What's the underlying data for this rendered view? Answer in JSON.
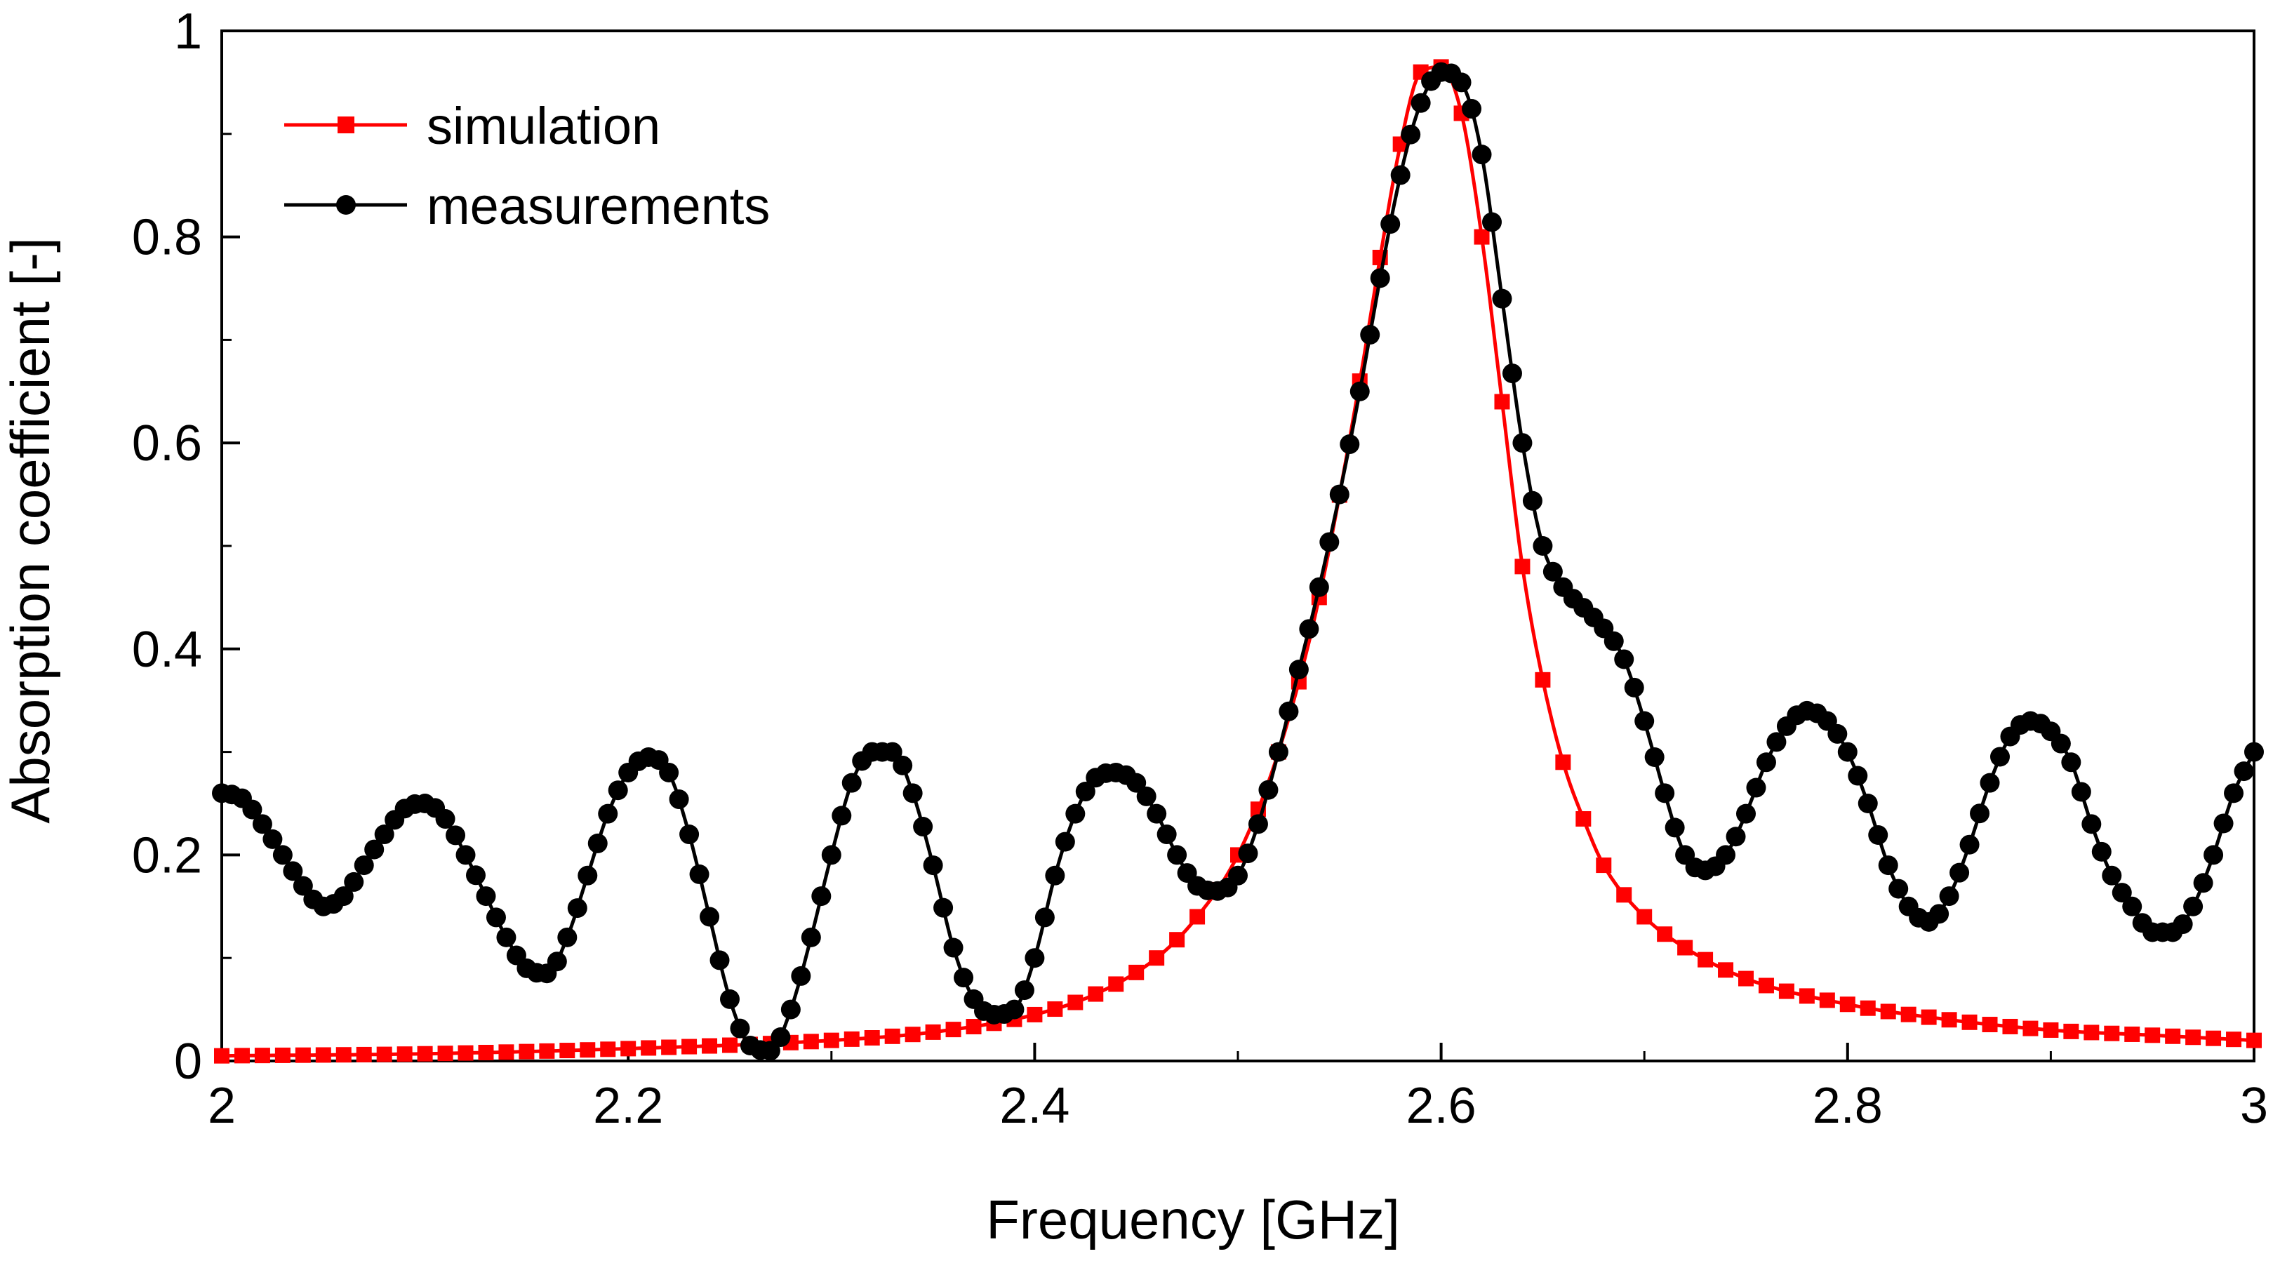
{
  "chart_data": {
    "type": "line",
    "title": "",
    "xlabel": "Frequency [GHz]",
    "ylabel": "Absorption coefficient [-]",
    "xlim": [
      2,
      3
    ],
    "ylim": [
      0,
      1
    ],
    "xticks": [
      2,
      2.2,
      2.4,
      2.6,
      2.8,
      3
    ],
    "xtick_labels": [
      "2",
      "2.2",
      "2.4",
      "2.6",
      "2.8",
      "3"
    ],
    "yticks": [
      0,
      0.2,
      0.4,
      0.6,
      0.8,
      1
    ],
    "ytick_labels": [
      "0",
      "0.2",
      "0.4",
      "0.6",
      "0.8",
      "1"
    ],
    "legend_position": "top-left",
    "grid": false,
    "series": [
      {
        "name": "simulation",
        "color": "#ff0000",
        "marker": "square",
        "x": [
          2.0,
          2.1,
          2.2,
          2.3,
          2.35,
          2.4,
          2.43,
          2.46,
          2.48,
          2.5,
          2.52,
          2.54,
          2.56,
          2.57,
          2.58,
          2.59,
          2.6,
          2.61,
          2.62,
          2.63,
          2.64,
          2.65,
          2.66,
          2.67,
          2.68,
          2.7,
          2.72,
          2.75,
          2.8,
          2.85,
          2.9,
          2.95,
          3.0
        ],
        "y": [
          0.005,
          0.007,
          0.012,
          0.02,
          0.028,
          0.045,
          0.065,
          0.1,
          0.14,
          0.2,
          0.3,
          0.45,
          0.66,
          0.78,
          0.89,
          0.96,
          0.965,
          0.92,
          0.8,
          0.64,
          0.48,
          0.37,
          0.29,
          0.235,
          0.19,
          0.14,
          0.11,
          0.08,
          0.055,
          0.04,
          0.03,
          0.025,
          0.02
        ]
      },
      {
        "name": "measurements",
        "color": "#000000",
        "marker": "circle",
        "x": [
          2.0,
          2.01,
          2.02,
          2.03,
          2.04,
          2.05,
          2.06,
          2.07,
          2.08,
          2.09,
          2.1,
          2.11,
          2.12,
          2.13,
          2.14,
          2.15,
          2.16,
          2.17,
          2.18,
          2.19,
          2.2,
          2.21,
          2.22,
          2.23,
          2.24,
          2.25,
          2.26,
          2.27,
          2.28,
          2.29,
          2.3,
          2.31,
          2.32,
          2.33,
          2.34,
          2.35,
          2.36,
          2.37,
          2.38,
          2.39,
          2.4,
          2.41,
          2.42,
          2.43,
          2.44,
          2.45,
          2.46,
          2.47,
          2.48,
          2.49,
          2.5,
          2.51,
          2.52,
          2.53,
          2.54,
          2.55,
          2.56,
          2.57,
          2.58,
          2.59,
          2.6,
          2.61,
          2.62,
          2.63,
          2.64,
          2.65,
          2.66,
          2.67,
          2.68,
          2.69,
          2.7,
          2.71,
          2.72,
          2.73,
          2.74,
          2.75,
          2.76,
          2.77,
          2.78,
          2.79,
          2.8,
          2.81,
          2.82,
          2.83,
          2.84,
          2.85,
          2.86,
          2.87,
          2.88,
          2.89,
          2.9,
          2.91,
          2.92,
          2.93,
          2.94,
          2.95,
          2.96,
          2.97,
          2.98,
          2.99,
          3.0
        ],
        "y": [
          0.26,
          0.255,
          0.23,
          0.2,
          0.17,
          0.15,
          0.16,
          0.19,
          0.22,
          0.245,
          0.25,
          0.235,
          0.2,
          0.16,
          0.12,
          0.09,
          0.085,
          0.12,
          0.18,
          0.24,
          0.28,
          0.295,
          0.28,
          0.22,
          0.14,
          0.06,
          0.015,
          0.01,
          0.05,
          0.12,
          0.2,
          0.27,
          0.3,
          0.3,
          0.26,
          0.19,
          0.11,
          0.06,
          0.045,
          0.05,
          0.1,
          0.18,
          0.24,
          0.275,
          0.28,
          0.27,
          0.24,
          0.2,
          0.17,
          0.165,
          0.18,
          0.23,
          0.3,
          0.38,
          0.46,
          0.55,
          0.65,
          0.76,
          0.86,
          0.93,
          0.96,
          0.95,
          0.88,
          0.74,
          0.6,
          0.5,
          0.46,
          0.44,
          0.42,
          0.39,
          0.33,
          0.26,
          0.2,
          0.185,
          0.2,
          0.24,
          0.29,
          0.325,
          0.34,
          0.33,
          0.3,
          0.25,
          0.19,
          0.15,
          0.135,
          0.16,
          0.21,
          0.27,
          0.315,
          0.33,
          0.32,
          0.29,
          0.23,
          0.18,
          0.15,
          0.125,
          0.125,
          0.15,
          0.2,
          0.26,
          0.3
        ]
      }
    ]
  }
}
